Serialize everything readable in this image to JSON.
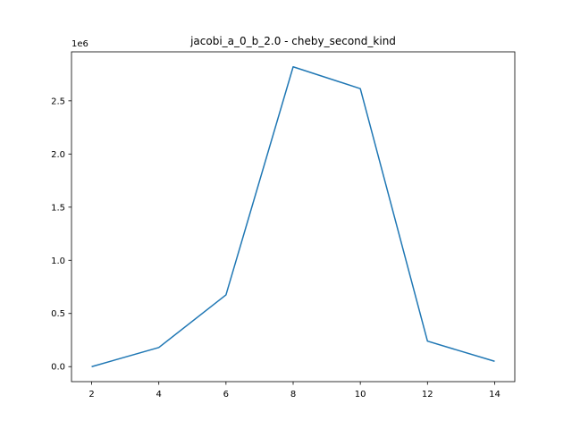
{
  "chart_data": {
    "type": "line",
    "title": "jacobi_a_0_b_2.0 - cheby_second_kind",
    "xlabel": "",
    "ylabel": "",
    "y_offset_label": "1e6",
    "x": [
      2,
      4,
      6,
      8,
      10,
      12,
      14
    ],
    "series": [
      {
        "values": [
          0,
          180000,
          675000,
          2820000,
          2615000,
          240000,
          50000
        ],
        "color": "#1f77b4"
      }
    ],
    "xlim": [
      1.4,
      14.6
    ],
    "ylim": [
      -141000,
      2961000
    ],
    "x_ticks": [
      2,
      4,
      6,
      8,
      10,
      12,
      14
    ],
    "x_tick_labels": [
      "2",
      "4",
      "6",
      "8",
      "10",
      "12",
      "14"
    ],
    "y_ticks": [
      0,
      500000,
      1000000,
      1500000,
      2000000,
      2500000
    ],
    "y_tick_labels": [
      "0.0",
      "0.5",
      "1.0",
      "1.5",
      "2.0",
      "2.5"
    ],
    "grid": false,
    "legend": "none"
  }
}
